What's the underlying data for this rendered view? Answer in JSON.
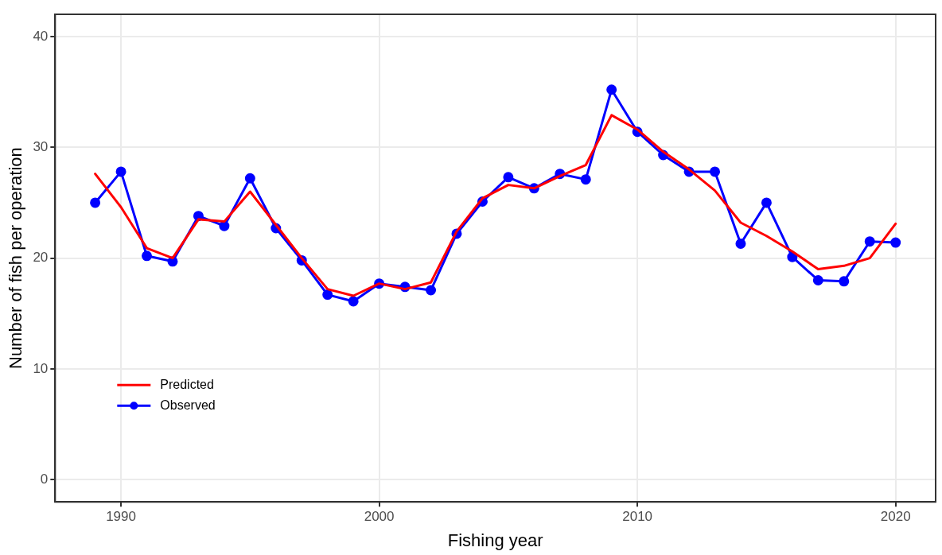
{
  "chart_data": {
    "type": "line",
    "xlabel": "Fishing year",
    "ylabel": "Number of fish per operation",
    "x": [
      1989,
      1990,
      1991,
      1992,
      1993,
      1994,
      1995,
      1996,
      1997,
      1998,
      1999,
      2000,
      2001,
      2002,
      2003,
      2004,
      2005,
      2006,
      2007,
      2008,
      2009,
      2010,
      2011,
      2012,
      2013,
      2014,
      2015,
      2016,
      2017,
      2018,
      2019,
      2020
    ],
    "series": [
      {
        "name": "Predicted",
        "color": "#ff0000",
        "marker": "none",
        "values": [
          27.6,
          24.6,
          20.9,
          20.0,
          23.5,
          23.3,
          26.0,
          23.0,
          20.0,
          17.2,
          16.6,
          17.7,
          17.2,
          17.8,
          22.4,
          25.4,
          26.6,
          26.3,
          27.4,
          28.4,
          32.9,
          31.6,
          29.6,
          28.0,
          26.1,
          23.2,
          22.0,
          20.6,
          19.0,
          19.3,
          20.0,
          23.1
        ]
      },
      {
        "name": "Observed",
        "color": "#0000ff",
        "marker": "circle",
        "values": [
          25.0,
          27.8,
          20.2,
          19.7,
          23.8,
          22.9,
          27.2,
          22.7,
          19.8,
          16.7,
          16.1,
          17.7,
          17.4,
          17.1,
          22.2,
          25.1,
          27.3,
          26.3,
          27.6,
          27.1,
          35.2,
          31.4,
          29.3,
          27.8,
          27.8,
          21.3,
          25.0,
          20.1,
          18.0,
          17.9,
          21.5,
          21.4
        ]
      }
    ],
    "xlim": [
      1987.45,
      2021.55
    ],
    "xticks": [
      1990,
      2000,
      2010,
      2020
    ],
    "ylim": [
      -2,
      42
    ],
    "yticks": [
      0,
      10,
      20,
      30,
      40
    ],
    "grid": true,
    "legend": "bottom left",
    "line_style": "solid"
  }
}
